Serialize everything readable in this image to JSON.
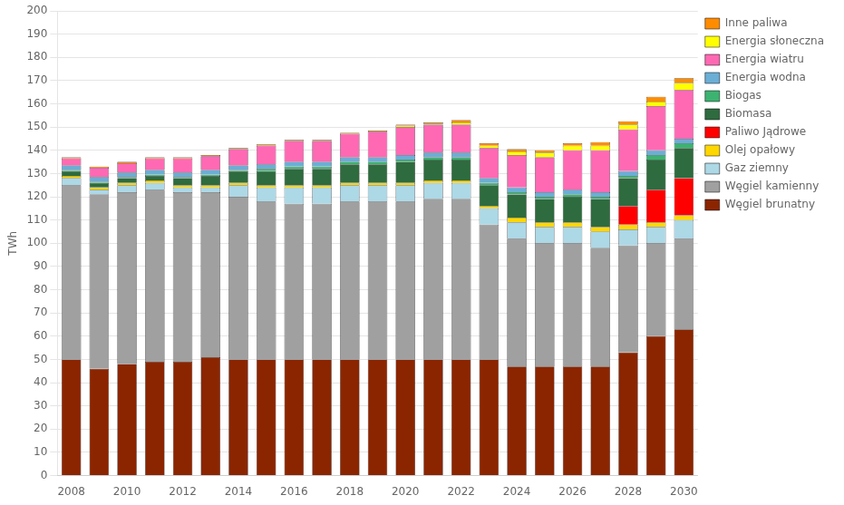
{
  "chart_data": {
    "type": "bar",
    "stacked": true,
    "x": [
      2008,
      2009,
      2010,
      2011,
      2012,
      2013,
      2014,
      2015,
      2016,
      2017,
      2018,
      2019,
      2020,
      2021,
      2022,
      2023,
      2024,
      2025,
      2026,
      2027,
      2028,
      2029,
      2030
    ],
    "xlim": [
      2007.5,
      2030.5
    ],
    "xticks": [
      2008,
      2010,
      2012,
      2014,
      2016,
      2018,
      2020,
      2022,
      2024,
      2026,
      2028,
      2030
    ],
    "ylabel": "TWh",
    "ylim": [
      0,
      200
    ],
    "yticks": [
      0,
      10,
      20,
      30,
      40,
      50,
      60,
      70,
      80,
      90,
      100,
      110,
      120,
      130,
      140,
      150,
      160,
      170,
      180,
      190,
      200
    ],
    "grid": "y",
    "legend": "right",
    "series": [
      {
        "name": "Węgiel brunatny",
        "color": "#8B2500",
        "values": [
          50,
          46,
          48,
          49,
          49,
          51,
          50,
          50,
          50,
          50,
          50,
          50,
          50,
          50,
          50,
          50,
          47,
          47,
          47,
          47,
          53,
          60,
          63
        ]
      },
      {
        "name": "Węgiel kamienny",
        "color": "#A0A0A0",
        "values": [
          75,
          75,
          74,
          74,
          73,
          71,
          70,
          68,
          67,
          67,
          68,
          68,
          68,
          69,
          69,
          58,
          55,
          53,
          53,
          51,
          46,
          40,
          39
        ]
      },
      {
        "name": "Gaz ziemny",
        "color": "#ADD8E6",
        "values": [
          3,
          2,
          3,
          3,
          2,
          2,
          5,
          6,
          7,
          7,
          7,
          7,
          7,
          7,
          7,
          7,
          7,
          7,
          7,
          7,
          7,
          7,
          8
        ]
      },
      {
        "name": "Olej opałowy",
        "color": "#FFD700",
        "values": [
          1,
          1,
          1,
          1,
          1,
          1,
          1,
          1,
          1,
          1,
          1,
          1,
          1,
          1,
          1,
          1,
          2,
          2,
          2,
          2,
          2,
          2,
          2
        ]
      },
      {
        "name": "Paliwo Jądrowe",
        "color": "#FF0000",
        "values": [
          0,
          0,
          0,
          0,
          0,
          0,
          0,
          0,
          0,
          0,
          0,
          0,
          0,
          0,
          0,
          0,
          0,
          0,
          0,
          0,
          8,
          14,
          16
        ]
      },
      {
        "name": "Biomasa",
        "color": "#2E6B3E",
        "values": [
          2,
          2,
          2,
          2,
          3,
          4,
          5,
          6,
          7,
          7,
          8,
          8,
          9,
          9,
          9,
          9,
          10,
          10,
          11,
          12,
          12,
          13,
          13
        ]
      },
      {
        "name": "Biogas",
        "color": "#3CB371",
        "values": [
          0.5,
          0.5,
          0.5,
          0.5,
          0.5,
          0.5,
          0.5,
          1,
          1,
          1,
          1,
          1,
          1,
          1,
          1,
          1,
          1,
          1,
          1,
          1,
          1,
          2,
          2
        ]
      },
      {
        "name": "Energia wodna",
        "color": "#6BAED6",
        "values": [
          2,
          2,
          2,
          2,
          2,
          2,
          2,
          2,
          2,
          2,
          2,
          2,
          2,
          2,
          2,
          2,
          2,
          2,
          2,
          2,
          2,
          2,
          2
        ]
      },
      {
        "name": "Energia wiatru",
        "color": "#FF69B4",
        "values": [
          3,
          4,
          4,
          5,
          6,
          6,
          7,
          8,
          9,
          9,
          10,
          11,
          12,
          12,
          12,
          13,
          14,
          15,
          17,
          18,
          18,
          19,
          21
        ]
      },
      {
        "name": "Energia słoneczna",
        "color": "#FFFF00",
        "values": [
          0,
          0,
          0,
          0,
          0,
          0,
          0,
          0,
          0,
          0,
          0,
          0,
          0.5,
          0.5,
          1,
          1,
          1.5,
          2,
          2,
          2,
          2,
          2,
          3
        ]
      },
      {
        "name": "Inne paliwa",
        "color": "#FF8C00",
        "values": [
          0.5,
          0.5,
          0.5,
          0.5,
          0.5,
          0.5,
          0.5,
          0.5,
          0.5,
          0.5,
          0.5,
          0.5,
          0.5,
          0.5,
          1,
          1,
          1,
          1,
          1,
          1.5,
          1.5,
          2,
          2
        ]
      }
    ]
  }
}
